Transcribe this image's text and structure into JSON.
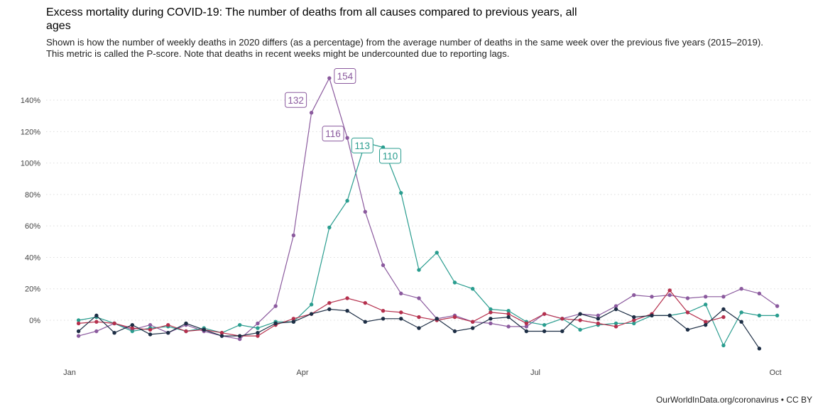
{
  "title": "Excess mortality during COVID-19: The number of deaths from all causes compared to previous years, all ages",
  "subtitle": "Shown is how the number of weekly deaths in 2020 differs (as a percentage) from the average number of deaths in the same week over the previous five years (2015–2019). This metric is called the P-score. Note that deaths in recent weeks might be undercounted due to reporting lags.",
  "footer": "OurWorldInData.org/coronavirus • CC BY",
  "chart_data": {
    "type": "line",
    "title": "Excess mortality during COVID-19: The number of deaths from all causes compared to previous years, all ages",
    "xlabel": "",
    "ylabel": "",
    "x_unit": "week of 2020",
    "x_ticks": [
      {
        "label": "Jan",
        "week": 0
      },
      {
        "label": "Apr",
        "week": 13
      },
      {
        "label": "Jul",
        "week": 26
      },
      {
        "label": "Oct",
        "week": 39.4
      }
    ],
    "y_ticks": [
      {
        "label": "0%",
        "value": 0
      },
      {
        "label": "20%",
        "value": 20
      },
      {
        "label": "40%",
        "value": 40
      },
      {
        "label": "60%",
        "value": 60
      },
      {
        "label": "80%",
        "value": 80
      },
      {
        "label": "100%",
        "value": 100
      },
      {
        "label": "120%",
        "value": 120
      },
      {
        "label": "140%",
        "value": 140
      }
    ],
    "ylim": [
      -22,
      155
    ],
    "grid": "horizontal dotted",
    "legend": "none",
    "series": [
      {
        "color": "#8b5a9e",
        "points": [
          [
            0.5,
            -10
          ],
          [
            1.5,
            -7
          ],
          [
            2.5,
            -2
          ],
          [
            3.5,
            -6
          ],
          [
            4.5,
            -3
          ],
          [
            5.5,
            -8
          ],
          [
            6.5,
            -3
          ],
          [
            7.5,
            -7
          ],
          [
            8.5,
            -10
          ],
          [
            9.5,
            -12
          ],
          [
            10.5,
            -2
          ],
          [
            11.5,
            9
          ],
          [
            12.5,
            54
          ],
          [
            13.5,
            132
          ],
          [
            14.5,
            154
          ],
          [
            15.5,
            116
          ],
          [
            16.5,
            69
          ],
          [
            17.5,
            35
          ],
          [
            18.5,
            17
          ],
          [
            19.5,
            14
          ],
          [
            20.5,
            1
          ],
          [
            21.5,
            3
          ],
          [
            22.5,
            -1
          ],
          [
            23.5,
            -2
          ],
          [
            24.5,
            -4
          ],
          [
            25.5,
            -4
          ],
          [
            26.5,
            4
          ],
          [
            27.5,
            1
          ],
          [
            28.5,
            4
          ],
          [
            29.5,
            3
          ],
          [
            30.5,
            9
          ],
          [
            31.5,
            16
          ],
          [
            32.5,
            15
          ],
          [
            33.5,
            16
          ],
          [
            34.5,
            14
          ],
          [
            35.5,
            15
          ],
          [
            36.5,
            15
          ],
          [
            37.5,
            20
          ],
          [
            38.5,
            17
          ],
          [
            39.5,
            9
          ]
        ],
        "labels": [
          {
            "week": 13.5,
            "value": 132,
            "text": "132"
          },
          {
            "week": 14.5,
            "value": 154,
            "text": "154"
          },
          {
            "week": 15.5,
            "value": 116,
            "text": "116"
          }
        ]
      },
      {
        "color": "#2a9d8f",
        "points": [
          [
            0.5,
            0
          ],
          [
            1.5,
            2
          ],
          [
            2.5,
            -2
          ],
          [
            3.5,
            -7
          ],
          [
            4.5,
            -5
          ],
          [
            5.5,
            -4
          ],
          [
            6.5,
            -7
          ],
          [
            7.5,
            -5
          ],
          [
            8.5,
            -8
          ],
          [
            9.5,
            -3
          ],
          [
            10.5,
            -5
          ],
          [
            11.5,
            -1
          ],
          [
            12.5,
            -1
          ],
          [
            13.5,
            10
          ],
          [
            14.5,
            59
          ],
          [
            15.5,
            76
          ],
          [
            16.5,
            113
          ],
          [
            17.5,
            110
          ],
          [
            18.5,
            81
          ],
          [
            19.5,
            32
          ],
          [
            20.5,
            43
          ],
          [
            21.5,
            24
          ],
          [
            22.5,
            20
          ],
          [
            23.5,
            7
          ],
          [
            24.5,
            6
          ],
          [
            25.5,
            -1
          ],
          [
            26.5,
            -3
          ],
          [
            27.5,
            1
          ],
          [
            28.5,
            -6
          ],
          [
            29.5,
            -3
          ],
          [
            30.5,
            -2
          ],
          [
            31.5,
            -2
          ],
          [
            32.5,
            3
          ],
          [
            33.5,
            3
          ],
          [
            34.5,
            5
          ],
          [
            35.5,
            10
          ],
          [
            36.5,
            -16
          ],
          [
            37.5,
            5
          ],
          [
            38.5,
            3
          ],
          [
            39.5,
            3
          ]
        ],
        "labels": [
          {
            "week": 16.5,
            "value": 113,
            "text": "113"
          },
          {
            "week": 17.5,
            "value": 110,
            "text": "110"
          }
        ]
      },
      {
        "color": "#b5304d",
        "points": [
          [
            0.5,
            -2
          ],
          [
            1.5,
            -1
          ],
          [
            2.5,
            -2
          ],
          [
            3.5,
            -5
          ],
          [
            4.5,
            -6
          ],
          [
            5.5,
            -3
          ],
          [
            6.5,
            -7
          ],
          [
            7.5,
            -6
          ],
          [
            8.5,
            -8
          ],
          [
            9.5,
            -10
          ],
          [
            10.5,
            -10
          ],
          [
            11.5,
            -3
          ],
          [
            12.5,
            1
          ],
          [
            13.5,
            4
          ],
          [
            14.5,
            11
          ],
          [
            15.5,
            14
          ],
          [
            16.5,
            11
          ],
          [
            17.5,
            6
          ],
          [
            18.5,
            5
          ],
          [
            19.5,
            2
          ],
          [
            20.5,
            0
          ],
          [
            21.5,
            2
          ],
          [
            22.5,
            -1
          ],
          [
            23.5,
            5
          ],
          [
            24.5,
            4
          ],
          [
            25.5,
            -2
          ],
          [
            26.5,
            4
          ],
          [
            27.5,
            1
          ],
          [
            28.5,
            0
          ],
          [
            29.5,
            -2
          ],
          [
            30.5,
            -4
          ],
          [
            31.5,
            0
          ],
          [
            32.5,
            4
          ],
          [
            33.5,
            19
          ],
          [
            34.5,
            5
          ],
          [
            35.5,
            -1
          ],
          [
            36.5,
            2
          ]
        ],
        "labels": []
      },
      {
        "color": "#1d2e45",
        "points": [
          [
            0.5,
            -7
          ],
          [
            1.5,
            3
          ],
          [
            2.5,
            -8
          ],
          [
            3.5,
            -3
          ],
          [
            4.5,
            -9
          ],
          [
            5.5,
            -8
          ],
          [
            6.5,
            -2
          ],
          [
            7.5,
            -6
          ],
          [
            8.5,
            -10
          ],
          [
            9.5,
            -10
          ],
          [
            10.5,
            -8
          ],
          [
            11.5,
            -2
          ],
          [
            12.5,
            -1
          ],
          [
            13.5,
            4
          ],
          [
            14.5,
            7
          ],
          [
            15.5,
            6
          ],
          [
            16.5,
            -1
          ],
          [
            17.5,
            1
          ],
          [
            18.5,
            1
          ],
          [
            19.5,
            -5
          ],
          [
            20.5,
            1
          ],
          [
            21.5,
            -7
          ],
          [
            22.5,
            -5
          ],
          [
            23.5,
            1
          ],
          [
            24.5,
            2
          ],
          [
            25.5,
            -7
          ],
          [
            26.5,
            -7
          ],
          [
            27.5,
            -7
          ],
          [
            28.5,
            4
          ],
          [
            29.5,
            1
          ],
          [
            30.5,
            7
          ],
          [
            31.5,
            2
          ],
          [
            32.5,
            3
          ],
          [
            33.5,
            3
          ],
          [
            34.5,
            -6
          ],
          [
            35.5,
            -3
          ],
          [
            36.5,
            7
          ],
          [
            37.5,
            -1
          ],
          [
            38.5,
            -18
          ]
        ],
        "labels": []
      }
    ]
  }
}
